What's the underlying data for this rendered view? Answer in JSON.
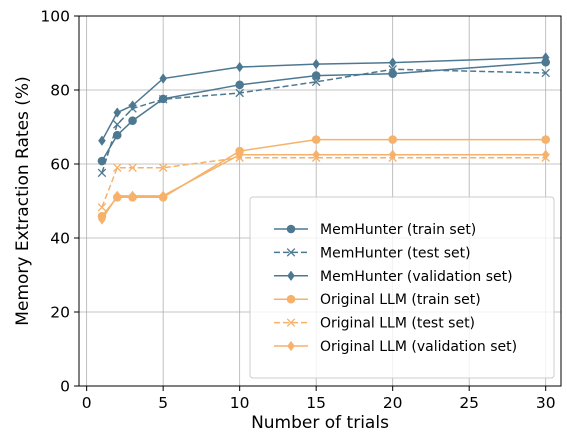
{
  "chart_data": {
    "type": "line",
    "title": "",
    "xlabel": "Number of trials",
    "ylabel": "Memory Extraction Rates (%)",
    "xlim": [
      -0.5,
      31
    ],
    "ylim": [
      0,
      100
    ],
    "xticks": [
      0,
      5,
      10,
      15,
      20,
      25,
      30
    ],
    "yticks": [
      0,
      20,
      40,
      60,
      80,
      100
    ],
    "grid": true,
    "legend_position": "lower-right",
    "x": [
      1,
      2,
      3,
      5,
      10,
      15,
      20,
      30
    ],
    "series": [
      {
        "name": "MemHunter (train set)",
        "color": "#4d7891",
        "linestyle": "solid",
        "marker": "circle",
        "values": [
          60.8,
          67.8,
          71.7,
          77.6,
          81.4,
          83.9,
          84.4,
          87.5
        ]
      },
      {
        "name": "MemHunter (test set)",
        "color": "#4d7891",
        "linestyle": "dashed",
        "marker": "x",
        "values": [
          57.6,
          70.7,
          75.0,
          77.5,
          79.2,
          82.2,
          85.6,
          84.6
        ]
      },
      {
        "name": "MemHunter (validation set)",
        "color": "#4d7891",
        "linestyle": "solid",
        "marker": "diamond",
        "values": [
          66.3,
          73.9,
          75.8,
          83.1,
          86.2,
          87.0,
          87.4,
          88.8
        ]
      },
      {
        "name": "Original LLM (train set)",
        "color": "#f6b26b",
        "linestyle": "solid",
        "marker": "circle",
        "values": [
          45.9,
          51.0,
          51.0,
          51.0,
          63.5,
          66.6,
          66.6,
          66.6
        ]
      },
      {
        "name": "Original LLM (test set)",
        "color": "#f6b26b",
        "linestyle": "dashed",
        "marker": "x",
        "values": [
          48.3,
          59.0,
          59.0,
          59.0,
          61.7,
          61.7,
          61.7,
          61.7
        ]
      },
      {
        "name": "Original LLM (validation set)",
        "color": "#f6b26b",
        "linestyle": "solid",
        "marker": "diamond",
        "values": [
          45.0,
          51.4,
          51.4,
          51.4,
          62.5,
          62.5,
          62.5,
          62.5
        ]
      }
    ]
  }
}
